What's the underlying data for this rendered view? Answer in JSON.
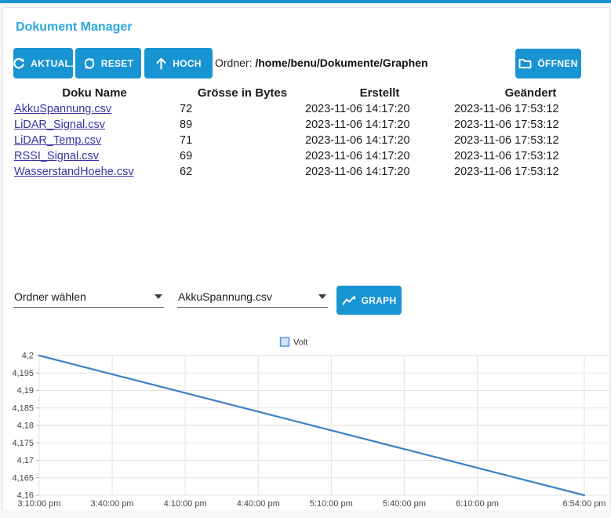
{
  "header": {
    "title": "Dokument Manager"
  },
  "toolbar": {
    "refresh_label": "AKTUAL.",
    "reset_label": "RESET",
    "up_label": "HOCH",
    "path_label": "Ordner:",
    "path_value": "/home/benu/Dokumente/Graphen",
    "open_label": "ÖFFNEN"
  },
  "file_table": {
    "columns": [
      "Doku Name",
      "Grösse in Bytes",
      "Erstellt",
      "Geändert"
    ],
    "rows": [
      {
        "name": "AkkuSpannung.csv",
        "size": "72",
        "created": "2023-11-06 14:17:20",
        "modified": "2023-11-06 17:53:12"
      },
      {
        "name": "LiDAR_Signal.csv",
        "size": "89",
        "created": "2023-11-06 14:17:20",
        "modified": "2023-11-06 17:53:12"
      },
      {
        "name": "LiDAR_Temp.csv",
        "size": "71",
        "created": "2023-11-06 14:17:20",
        "modified": "2023-11-06 17:53:12"
      },
      {
        "name": "RSSI_Signal.csv",
        "size": "69",
        "created": "2023-11-06 14:17:20",
        "modified": "2023-11-06 17:53:12"
      },
      {
        "name": "WasserstandHoehe.csv",
        "size": "62",
        "created": "2023-11-06 14:17:20",
        "modified": "2023-11-06 17:53:12"
      }
    ]
  },
  "controls": {
    "folder_select_value": "Ordner wählen",
    "file_select_value": "AkkuSpannung.csv",
    "graph_label": "GRAPH"
  },
  "colors": {
    "accent_blue": "#1894d3",
    "title_blue": "#29a8e0",
    "link_blue": "#3734a5",
    "line_blue": "#3e80c7",
    "grid_gray": "#e3e3e3",
    "tick_text": "#444444"
  },
  "chart_data": {
    "type": "line",
    "title": "",
    "legend": {
      "label": "Volt",
      "position": "top"
    },
    "x_axis": {
      "note": "pos = minutes after 12:00 noon",
      "lim": [
        190,
        424
      ],
      "ticks": [
        {
          "pos": 190,
          "label": "3:10:00 pm"
        },
        {
          "pos": 220,
          "label": "3:40:00 pm"
        },
        {
          "pos": 250,
          "label": "4:10:00 pm"
        },
        {
          "pos": 280,
          "label": "4:40:00 pm"
        },
        {
          "pos": 310,
          "label": "5:10:00 pm"
        },
        {
          "pos": 340,
          "label": "5:40:00 pm"
        },
        {
          "pos": 370,
          "label": "6:10:00 pm"
        },
        {
          "pos": 414,
          "label": "6:54:00 pm"
        }
      ]
    },
    "y_axis": {
      "lim": [
        4.16,
        4.2
      ],
      "ticks": [
        {
          "value": 4.16,
          "label": "4,16"
        },
        {
          "value": 4.165,
          "label": "4,165"
        },
        {
          "value": 4.17,
          "label": "4,17"
        },
        {
          "value": 4.175,
          "label": "4,175"
        },
        {
          "value": 4.18,
          "label": "4,18"
        },
        {
          "value": 4.185,
          "label": "4,185"
        },
        {
          "value": 4.19,
          "label": "4,19"
        },
        {
          "value": 4.195,
          "label": "4,195"
        },
        {
          "value": 4.2,
          "label": "4,2"
        }
      ]
    },
    "series": [
      {
        "name": "Volt",
        "color": "#3e80c7",
        "points": [
          [
            190,
            4.2
          ],
          [
            414,
            4.16
          ]
        ]
      }
    ],
    "grid": true
  }
}
